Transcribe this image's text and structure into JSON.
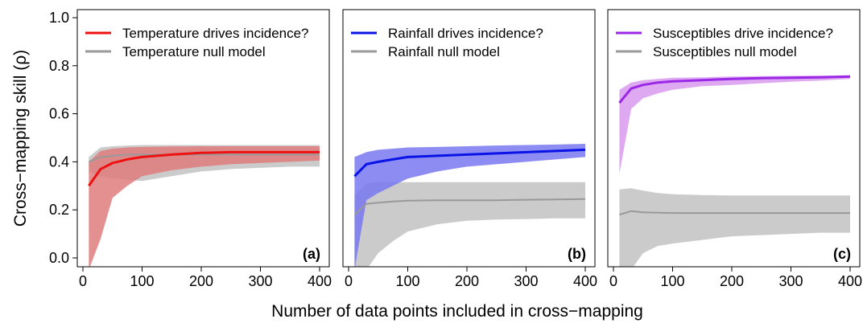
{
  "chart_data": {
    "type": "line",
    "xlabel": "Number of data points included in cross−mapping",
    "ylabel": "Cross−mapping skill (ρ)",
    "xlim": [
      0,
      410
    ],
    "ylim": [
      -0.02,
      1.05
    ],
    "x_ticks": [
      "0",
      "100",
      "200",
      "300",
      "400"
    ],
    "y_ticks": [
      "0.0",
      "0.2",
      "0.4",
      "0.6",
      "0.8",
      "1.0"
    ],
    "grid": false,
    "legend_position": "top-left",
    "panels": [
      {
        "tag": "(a)",
        "series": [
          {
            "name": "Temperature drives incidence?",
            "color": "#ee1111",
            "band_color": "#e07c7c",
            "x": [
              10,
              30,
              50,
              75,
              100,
              150,
              200,
              250,
              300,
              350,
              400
            ],
            "y": [
              0.3,
              0.37,
              0.395,
              0.41,
              0.42,
              0.43,
              0.437,
              0.44,
              0.44,
              0.44,
              0.44
            ],
            "upper": [
              0.4,
              0.445,
              0.455,
              0.46,
              0.462,
              0.464,
              0.465,
              0.465,
              0.465,
              0.465,
              0.465
            ],
            "lower": [
              -0.05,
              0.08,
              0.25,
              0.3,
              0.34,
              0.365,
              0.38,
              0.39,
              0.395,
              0.4,
              0.405
            ]
          },
          {
            "name": "Temperature null model",
            "color": "#999999",
            "band_color": "#c8c8c8",
            "x": [
              10,
              30,
              50,
              75,
              100,
              150,
              200,
              250,
              300,
              350,
              400
            ],
            "y": [
              0.4,
              0.42,
              0.425,
              0.43,
              0.43,
              0.43,
              0.43,
              0.43,
              0.43,
              0.43,
              0.43
            ],
            "upper": [
              0.42,
              0.46,
              0.465,
              0.468,
              0.47,
              0.47,
              0.47,
              0.47,
              0.47,
              0.47,
              0.47
            ],
            "lower": [
              0.36,
              0.34,
              0.33,
              0.325,
              0.32,
              0.34,
              0.36,
              0.37,
              0.375,
              0.38,
              0.38
            ]
          }
        ]
      },
      {
        "tag": "(b)",
        "series": [
          {
            "name": "Rainfall drives incidence?",
            "color": "#0a14e6",
            "band_color": "#7878f0",
            "x": [
              10,
              30,
              50,
              75,
              100,
              150,
              200,
              250,
              300,
              350,
              400
            ],
            "y": [
              0.34,
              0.39,
              0.4,
              0.41,
              0.42,
              0.425,
              0.43,
              0.435,
              0.44,
              0.445,
              0.45
            ],
            "upper": [
              0.42,
              0.44,
              0.45,
              0.455,
              0.46,
              0.462,
              0.465,
              0.468,
              0.47,
              0.472,
              0.475
            ],
            "lower": [
              -0.05,
              0.24,
              0.27,
              0.3,
              0.33,
              0.36,
              0.38,
              0.39,
              0.4,
              0.41,
              0.42
            ]
          },
          {
            "name": "Rainfall null model",
            "color": "#999999",
            "band_color": "#c8c8c8",
            "x": [
              10,
              30,
              50,
              75,
              100,
              150,
              200,
              250,
              300,
              350,
              400
            ],
            "y": [
              0.18,
              0.225,
              0.23,
              0.235,
              0.238,
              0.24,
              0.24,
              0.24,
              0.242,
              0.243,
              0.245
            ],
            "upper": [
              0.26,
              0.31,
              0.315,
              0.315,
              0.315,
              0.315,
              0.315,
              0.315,
              0.315,
              0.315,
              0.315
            ],
            "lower": [
              -0.05,
              -0.05,
              0.02,
              0.07,
              0.11,
              0.14,
              0.155,
              0.16,
              0.162,
              0.165,
              0.165
            ]
          }
        ]
      },
      {
        "tag": "(c)",
        "series": [
          {
            "name": "Susceptibles drive incidence?",
            "color": "#9a28e6",
            "band_color": "#d99af0",
            "x": [
              10,
              30,
              50,
              75,
              100,
              150,
              200,
              250,
              300,
              350,
              400
            ],
            "y": [
              0.645,
              0.705,
              0.72,
              0.73,
              0.735,
              0.74,
              0.745,
              0.748,
              0.75,
              0.752,
              0.755
            ],
            "upper": [
              0.7,
              0.73,
              0.74,
              0.745,
              0.75,
              0.752,
              0.755,
              0.757,
              0.758,
              0.759,
              0.76
            ],
            "lower": [
              0.35,
              0.62,
              0.665,
              0.685,
              0.7,
              0.715,
              0.72,
              0.727,
              0.733,
              0.738,
              0.745
            ]
          },
          {
            "name": "Susceptibles null model",
            "color": "#999999",
            "band_color": "#c8c8c8",
            "x": [
              10,
              30,
              50,
              75,
              100,
              150,
              200,
              250,
              300,
              350,
              400
            ],
            "y": [
              0.18,
              0.195,
              0.19,
              0.188,
              0.187,
              0.187,
              0.187,
              0.187,
              0.187,
              0.187,
              0.187
            ],
            "upper": [
              0.285,
              0.29,
              0.28,
              0.27,
              0.265,
              0.262,
              0.26,
              0.26,
              0.26,
              0.26,
              0.26
            ],
            "lower": [
              -0.05,
              -0.05,
              0.02,
              0.05,
              0.06,
              0.075,
              0.09,
              0.095,
              0.1,
              0.105,
              0.105
            ]
          }
        ]
      }
    ]
  }
}
